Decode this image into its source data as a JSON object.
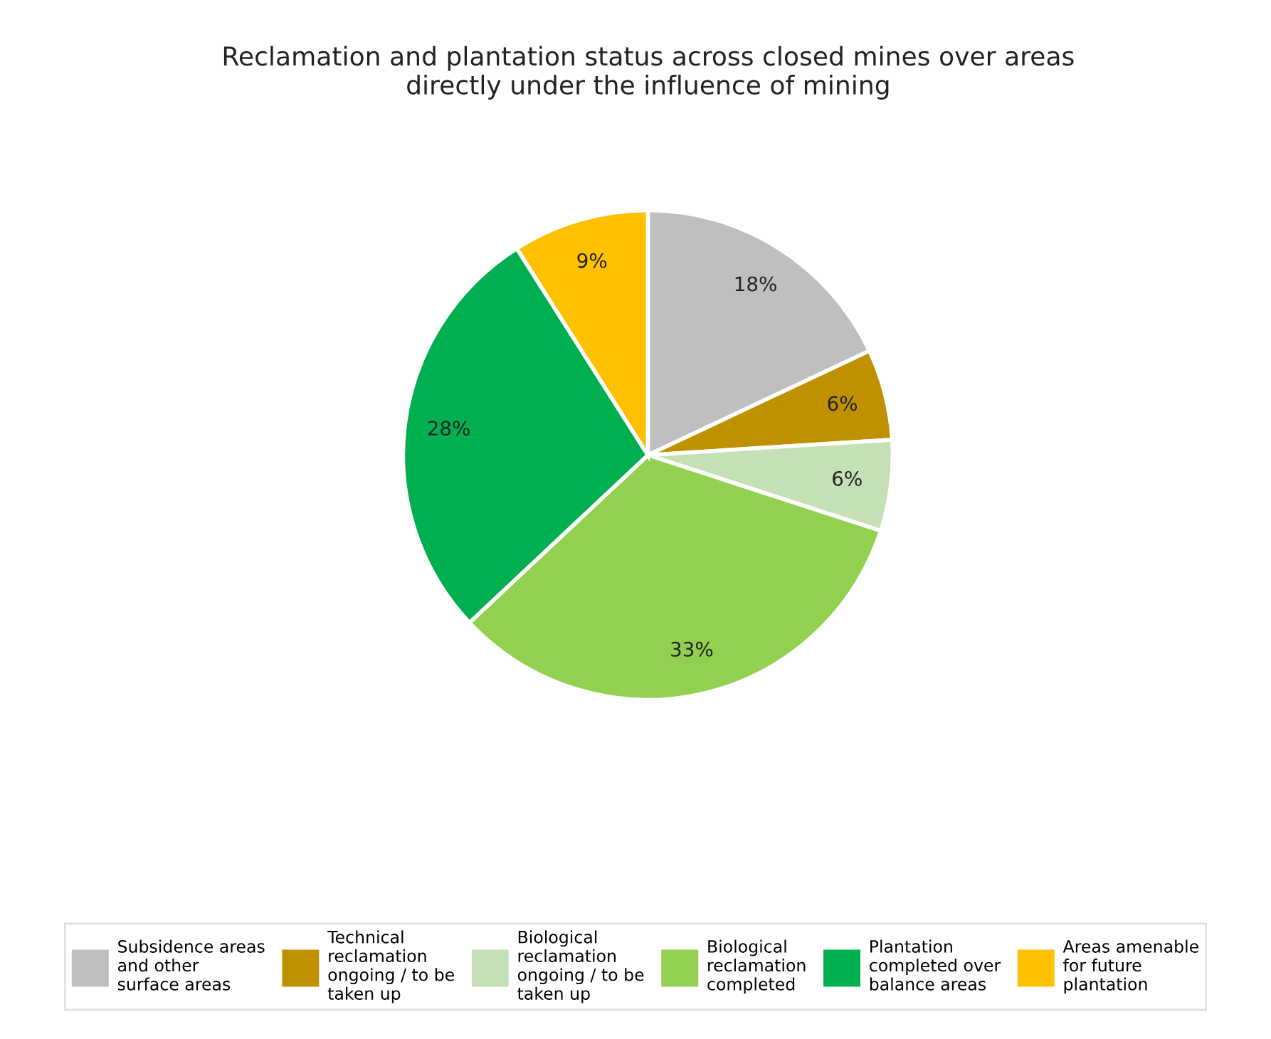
{
  "chart_data": {
    "type": "pie",
    "title": "Reclamation and plantation status across closed mines over areas\ndirectly under the influence of mining",
    "categories": [
      "Subsidence areas\nand other\nsurface areas",
      "Technical\nreclamation\nongoing / to be\ntaken up",
      "Biological\nreclamation\nongoing / to be\ntaken up",
      "Biological\nreclamation\ncompleted",
      "Plantation\ncompleted over\nbalance areas",
      "Areas amenable\nfor future\nplantation"
    ],
    "values": [
      18,
      6,
      6,
      33,
      28,
      9
    ],
    "value_labels": [
      "18%",
      "6%",
      "6%",
      "33%",
      "28%",
      "9%"
    ],
    "colors": [
      "#bfbfbf",
      "#bf9000",
      "#c5e0b4",
      "#92d050",
      "#00b050",
      "#ffc000"
    ],
    "legend": "bottom"
  }
}
